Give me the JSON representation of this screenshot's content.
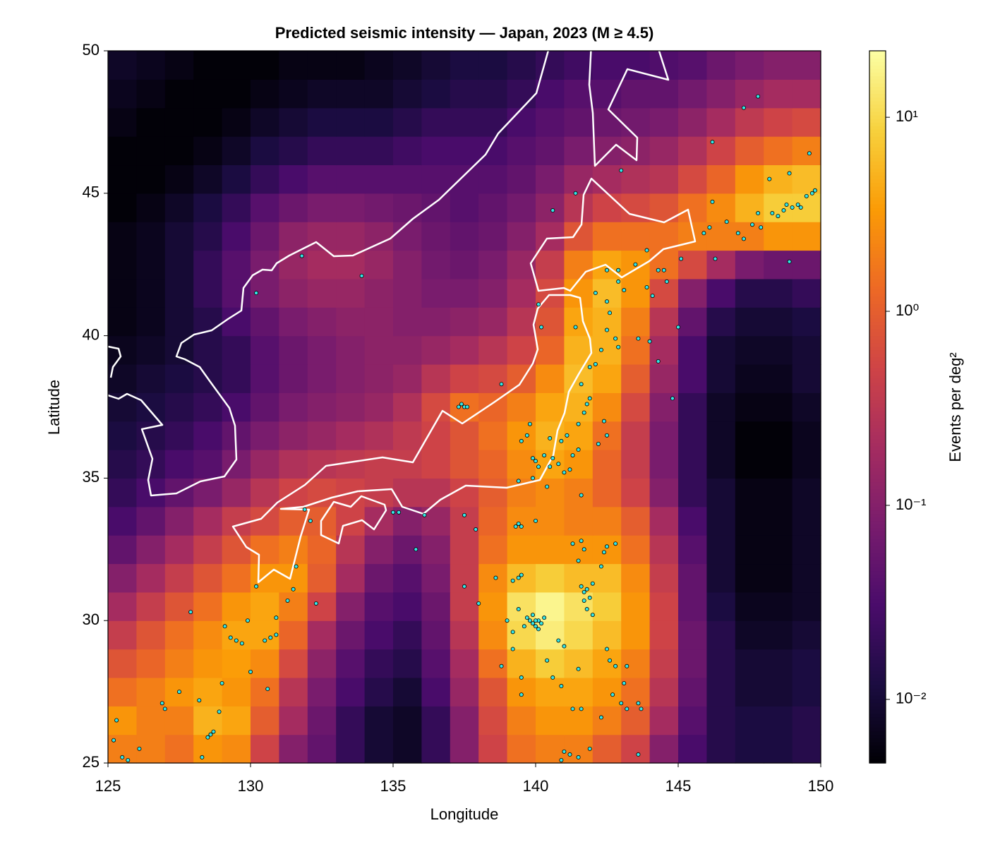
{
  "chart_data": {
    "type": "heatmap",
    "title": "Predicted seismic intensity — Japan, 2023 (M ≥ 4.5)",
    "x_label": "Longitude",
    "y_label": "Latitude",
    "colorbar_label": "Events per deg²",
    "xlim": [
      125,
      150
    ],
    "ylim": [
      25,
      50
    ],
    "xticks": [
      125,
      130,
      135,
      140,
      145,
      150
    ],
    "yticks": [
      25,
      30,
      35,
      40,
      45,
      50
    ],
    "clim": [
      0.0047,
      22
    ],
    "color_scale": "log",
    "cticks": [
      {
        "value": 0.01,
        "label": "10⁻²"
      },
      {
        "value": 0.1,
        "label": "10⁻¹"
      },
      {
        "value": 1,
        "label": "10⁰"
      },
      {
        "value": 10,
        "label": "10¹"
      }
    ],
    "colormap": [
      "#000004",
      "#1b0c41",
      "#4a0c6b",
      "#781c6d",
      "#a52c60",
      "#cf4446",
      "#ed6925",
      "#fb9b06",
      "#f7d13d",
      "#fcffa4"
    ],
    "z": [
      [
        2,
        2,
        1.5,
        3,
        2.5,
        0.5,
        0.1,
        0.05,
        0.02,
        0.01,
        0.008,
        0.02,
        0.1,
        0.5,
        1.5,
        2,
        2,
        1,
        0.5,
        0.1,
        0.03,
        0.015,
        0.012,
        0.012,
        0.015
      ],
      [
        3,
        2,
        2,
        5,
        4,
        1,
        0.2,
        0.06,
        0.02,
        0.01,
        0.008,
        0.02,
        0.1,
        0.6,
        2,
        3,
        3,
        2,
        1,
        0.2,
        0.04,
        0.015,
        0.012,
        0.012,
        0.015
      ],
      [
        1.5,
        2,
        3,
        4,
        3,
        1.5,
        0.3,
        0.08,
        0.03,
        0.015,
        0.01,
        0.03,
        0.15,
        0.8,
        3,
        4,
        4,
        3,
        1.5,
        0.3,
        0.05,
        0.015,
        0.01,
        0.01,
        0.012
      ],
      [
        0.8,
        1.2,
        2,
        3,
        3.5,
        2.5,
        0.6,
        0.12,
        0.04,
        0.02,
        0.015,
        0.04,
        0.2,
        1.5,
        5,
        8,
        6,
        4,
        2,
        0.4,
        0.06,
        0.015,
        0.01,
        0.01,
        0.012
      ],
      [
        0.4,
        0.8,
        1.5,
        2.5,
        4,
        4,
        1.2,
        0.2,
        0.06,
        0.03,
        0.02,
        0.05,
        0.3,
        2.5,
        10,
        15,
        10,
        6,
        3,
        0.5,
        0.06,
        0.015,
        0.008,
        0.008,
        0.01
      ],
      [
        0.2,
        0.4,
        0.8,
        1.5,
        3,
        4,
        2,
        0.5,
        0.1,
        0.04,
        0.03,
        0.06,
        0.4,
        3,
        12,
        18,
        12,
        8,
        3,
        0.5,
        0.05,
        0.012,
        0.007,
        0.007,
        0.008
      ],
      [
        0.1,
        0.2,
        0.4,
        0.8,
        1.5,
        3,
        3,
        1,
        0.2,
        0.06,
        0.04,
        0.08,
        0.4,
        2.5,
        6,
        8,
        6,
        6,
        2.5,
        0.4,
        0.05,
        0.01,
        0.006,
        0.006,
        0.008
      ],
      [
        0.05,
        0.1,
        0.2,
        0.4,
        0.8,
        1.5,
        2,
        1.2,
        0.3,
        0.1,
        0.06,
        0.1,
        0.4,
        1.5,
        3,
        3,
        3,
        3,
        1.5,
        0.3,
        0.04,
        0.01,
        0.006,
        0.006,
        0.008
      ],
      [
        0.03,
        0.05,
        0.1,
        0.2,
        0.4,
        0.6,
        1,
        1,
        0.5,
        0.2,
        0.1,
        0.15,
        0.4,
        1.2,
        2.5,
        2.5,
        2,
        2,
        1,
        0.2,
        0.03,
        0.01,
        0.006,
        0.006,
        0.008
      ],
      [
        0.02,
        0.03,
        0.05,
        0.08,
        0.15,
        0.3,
        0.5,
        0.6,
        0.5,
        0.4,
        0.3,
        0.3,
        0.5,
        1,
        2,
        2.5,
        2,
        1.2,
        0.5,
        0.1,
        0.02,
        0.01,
        0.006,
        0.006,
        0.008
      ],
      [
        0.015,
        0.02,
        0.03,
        0.04,
        0.08,
        0.15,
        0.25,
        0.3,
        0.35,
        0.4,
        0.4,
        0.5,
        0.8,
        1.2,
        2.5,
        4,
        3,
        1.2,
        0.4,
        0.08,
        0.02,
        0.008,
        0.005,
        0.005,
        0.007
      ],
      [
        0.012,
        0.015,
        0.02,
        0.03,
        0.05,
        0.08,
        0.12,
        0.15,
        0.2,
        0.25,
        0.35,
        0.5,
        0.8,
        1.5,
        3,
        5,
        4,
        1.5,
        0.4,
        0.08,
        0.02,
        0.008,
        0.005,
        0.005,
        0.007
      ],
      [
        0.01,
        0.012,
        0.015,
        0.02,
        0.03,
        0.05,
        0.08,
        0.1,
        0.12,
        0.15,
        0.25,
        0.6,
        1.5,
        1.2,
        2,
        4,
        5,
        2.5,
        0.6,
        0.1,
        0.02,
        0.008,
        0.006,
        0.006,
        0.008
      ],
      [
        0.008,
        0.01,
        0.012,
        0.015,
        0.02,
        0.04,
        0.06,
        0.08,
        0.1,
        0.12,
        0.15,
        0.3,
        0.5,
        0.6,
        1,
        2.5,
        6,
        4,
        1,
        0.15,
        0.03,
        0.01,
        0.007,
        0.007,
        0.01
      ],
      [
        0.007,
        0.008,
        0.01,
        0.015,
        0.02,
        0.04,
        0.06,
        0.08,
        0.1,
        0.12,
        0.12,
        0.15,
        0.2,
        0.3,
        0.5,
        1.2,
        5,
        5,
        1.5,
        0.2,
        0.03,
        0.01,
        0.008,
        0.008,
        0.01
      ],
      [
        0.006,
        0.007,
        0.01,
        0.015,
        0.03,
        0.05,
        0.08,
        0.1,
        0.12,
        0.12,
        0.1,
        0.1,
        0.12,
        0.15,
        0.3,
        0.8,
        4,
        5,
        2,
        0.3,
        0.05,
        0.015,
        0.01,
        0.01,
        0.012
      ],
      [
        0.006,
        0.007,
        0.01,
        0.02,
        0.04,
        0.08,
        0.12,
        0.15,
        0.15,
        0.12,
        0.1,
        0.08,
        0.08,
        0.1,
        0.2,
        0.6,
        3,
        6,
        3,
        0.6,
        0.1,
        0.03,
        0.015,
        0.015,
        0.02
      ],
      [
        0.006,
        0.007,
        0.01,
        0.02,
        0.04,
        0.08,
        0.15,
        0.2,
        0.2,
        0.15,
        0.1,
        0.07,
        0.06,
        0.08,
        0.15,
        0.4,
        2,
        4,
        3,
        1.5,
        0.6,
        0.2,
        0.08,
        0.06,
        0.06
      ],
      [
        0.006,
        0.007,
        0.01,
        0.015,
        0.03,
        0.06,
        0.12,
        0.15,
        0.15,
        0.12,
        0.08,
        0.06,
        0.05,
        0.06,
        0.1,
        0.2,
        0.8,
        1.5,
        1.5,
        1.5,
        2,
        2,
        2,
        3,
        3
      ],
      [
        0.005,
        0.006,
        0.008,
        0.012,
        0.02,
        0.04,
        0.06,
        0.08,
        0.08,
        0.07,
        0.06,
        0.05,
        0.04,
        0.05,
        0.07,
        0.12,
        0.3,
        0.5,
        0.6,
        0.8,
        1.5,
        2.5,
        5,
        8,
        8
      ],
      [
        0.005,
        0.005,
        0.006,
        0.008,
        0.012,
        0.02,
        0.03,
        0.04,
        0.04,
        0.04,
        0.04,
        0.04,
        0.04,
        0.04,
        0.05,
        0.08,
        0.15,
        0.2,
        0.25,
        0.3,
        0.6,
        1.2,
        3,
        5,
        6
      ],
      [
        0.005,
        0.005,
        0.005,
        0.006,
        0.008,
        0.012,
        0.015,
        0.02,
        0.02,
        0.02,
        0.025,
        0.03,
        0.03,
        0.03,
        0.04,
        0.05,
        0.08,
        0.1,
        0.12,
        0.15,
        0.25,
        0.5,
        1,
        1.5,
        2
      ],
      [
        0.006,
        0.005,
        0.005,
        0.005,
        0.006,
        0.008,
        0.01,
        0.012,
        0.012,
        0.012,
        0.015,
        0.02,
        0.02,
        0.02,
        0.03,
        0.04,
        0.05,
        0.06,
        0.07,
        0.08,
        0.12,
        0.2,
        0.35,
        0.5,
        0.6
      ],
      [
        0.007,
        0.006,
        0.005,
        0.005,
        0.005,
        0.006,
        0.007,
        0.008,
        0.008,
        0.008,
        0.01,
        0.012,
        0.015,
        0.015,
        0.02,
        0.03,
        0.04,
        0.04,
        0.05,
        0.05,
        0.07,
        0.1,
        0.15,
        0.2,
        0.2
      ],
      [
        0.008,
        0.007,
        0.006,
        0.005,
        0.005,
        0.005,
        0.006,
        0.006,
        0.006,
        0.007,
        0.008,
        0.01,
        0.012,
        0.012,
        0.015,
        0.02,
        0.025,
        0.03,
        0.03,
        0.035,
        0.04,
        0.06,
        0.08,
        0.1,
        0.1
      ]
    ],
    "points": {
      "color": "#33e6e6",
      "x": [
        125.2,
        125.5,
        125.7,
        125.3,
        126.1,
        126.9,
        127.0,
        127.5,
        128.2,
        128.6,
        128.7,
        128.5,
        128.3,
        129.0,
        129.1,
        129.3,
        129.5,
        129.7,
        129.9,
        130.0,
        130.5,
        130.7,
        130.9,
        130.6,
        130.9,
        131.3,
        131.5,
        131.6,
        132.3,
        127.9,
        128.9,
        130.2,
        131.9,
        132.1,
        133.9,
        131.8,
        130.2,
        135.0,
        135.2,
        136.1,
        135.8,
        137.3,
        137.4,
        137.5,
        137.6,
        138.8,
        137.5,
        137.9,
        138.0,
        137.5,
        138.6,
        138.8,
        139.2,
        139.4,
        139.5,
        139.3,
        139.2,
        139.4,
        139.5,
        139.8,
        139.9,
        140.0,
        140.1,
        140.2,
        139.7,
        139.9,
        140.1,
        140.3,
        139.6,
        140.0,
        139.4,
        139.0,
        139.2,
        139.5,
        139.5,
        140.4,
        140.8,
        140.6,
        141.0,
        140.9,
        141.3,
        141.6,
        141.0,
        141.2,
        141.5,
        140.9,
        141.9,
        141.5,
        141.6,
        141.7,
        141.8,
        141.9,
        142.0,
        141.7,
        141.8,
        142.0,
        141.5,
        141.7,
        141.6,
        142.4,
        142.5,
        141.3,
        142.3,
        142.8,
        142.5,
        142.6,
        142.8,
        143.2,
        143.6,
        143.7,
        142.7,
        143.0,
        143.6,
        142.3,
        143.1,
        143.2,
        139.5,
        139.7,
        139.8,
        139.9,
        140.0,
        140.1,
        139.9,
        139.4,
        140.5,
        140.6,
        140.8,
        140.9,
        141.0,
        141.2,
        141.3,
        141.5,
        141.1,
        141.5,
        141.7,
        141.8,
        141.9,
        142.2,
        142.5,
        142.4,
        141.6,
        141.9,
        142.1,
        142.3,
        142.5,
        142.9,
        142.8,
        143.6,
        144.0,
        144.3,
        142.6,
        142.5,
        142.9,
        143.1,
        142.1,
        142.5,
        142.9,
        143.5,
        143.9,
        144.3,
        144.5,
        145.1,
        144.6,
        143.9,
        144.1,
        141.4,
        140.1,
        140.2,
        141.4,
        140.6,
        143.0,
        144.8,
        140.0,
        141.6,
        140.3,
        140.5,
        140.4,
        145.0,
        146.2,
        146.2,
        145.9,
        146.1,
        146.7,
        147.1,
        147.3,
        147.6,
        147.8,
        147.9,
        148.3,
        148.5,
        148.7,
        148.8,
        149.0,
        149.2,
        149.3,
        149.5,
        149.7,
        149.8,
        148.9,
        148.9,
        148.2,
        149.6,
        147.3,
        147.8,
        146.3
      ],
      "y": [
        25.8,
        25.2,
        25.1,
        26.5,
        25.5,
        27.1,
        26.9,
        27.5,
        27.2,
        26.0,
        26.1,
        25.9,
        25.2,
        27.8,
        29.8,
        29.4,
        29.3,
        29.2,
        30.0,
        28.2,
        29.3,
        29.4,
        29.5,
        27.6,
        30.1,
        30.7,
        31.1,
        31.9,
        30.6,
        30.3,
        26.8,
        31.2,
        33.9,
        33.5,
        42.1,
        42.8,
        41.5,
        33.8,
        33.8,
        33.7,
        32.5,
        37.5,
        37.6,
        37.5,
        37.5,
        38.3,
        33.7,
        33.2,
        30.6,
        31.2,
        31.5,
        28.4,
        29.0,
        33.4,
        33.3,
        33.3,
        31.4,
        31.5,
        31.6,
        30.0,
        29.9,
        29.8,
        30.0,
        29.9,
        30.1,
        30.2,
        29.7,
        30.1,
        29.8,
        30.0,
        30.4,
        30.0,
        29.6,
        28.0,
        27.4,
        28.6,
        29.3,
        28.0,
        29.1,
        27.7,
        26.9,
        26.9,
        25.4,
        25.3,
        25.2,
        25.1,
        25.5,
        28.3,
        31.2,
        31.0,
        31.1,
        30.8,
        31.3,
        30.7,
        30.4,
        30.2,
        32.1,
        32.5,
        32.8,
        32.4,
        32.6,
        32.7,
        31.9,
        32.7,
        29.0,
        28.6,
        28.4,
        26.9,
        27.1,
        26.9,
        27.4,
        27.1,
        25.3,
        26.6,
        27.8,
        28.4,
        36.3,
        36.5,
        36.9,
        35.7,
        35.6,
        35.4,
        35.0,
        34.9,
        35.4,
        35.7,
        35.5,
        36.3,
        35.2,
        35.3,
        35.8,
        36.0,
        36.5,
        36.9,
        37.3,
        37.6,
        37.8,
        36.2,
        36.5,
        37.0,
        38.3,
        38.9,
        39.0,
        39.5,
        40.2,
        39.6,
        39.9,
        39.9,
        39.8,
        39.1,
        40.8,
        41.2,
        41.9,
        41.6,
        41.5,
        42.3,
        42.3,
        42.5,
        43.0,
        42.3,
        42.3,
        42.7,
        41.9,
        41.7,
        41.4,
        40.3,
        41.1,
        40.3,
        45.0,
        44.4,
        45.8,
        37.8,
        33.5,
        34.4,
        35.8,
        36.4,
        34.7,
        40.3,
        46.8,
        44.7,
        43.6,
        43.8,
        44.0,
        43.6,
        43.4,
        43.9,
        44.3,
        43.8,
        44.3,
        44.2,
        44.4,
        44.6,
        44.5,
        44.6,
        44.5,
        44.9,
        45.0,
        45.1,
        42.6,
        45.7,
        45.5,
        46.4,
        48.0,
        48.4,
        42.7
      ]
    }
  }
}
